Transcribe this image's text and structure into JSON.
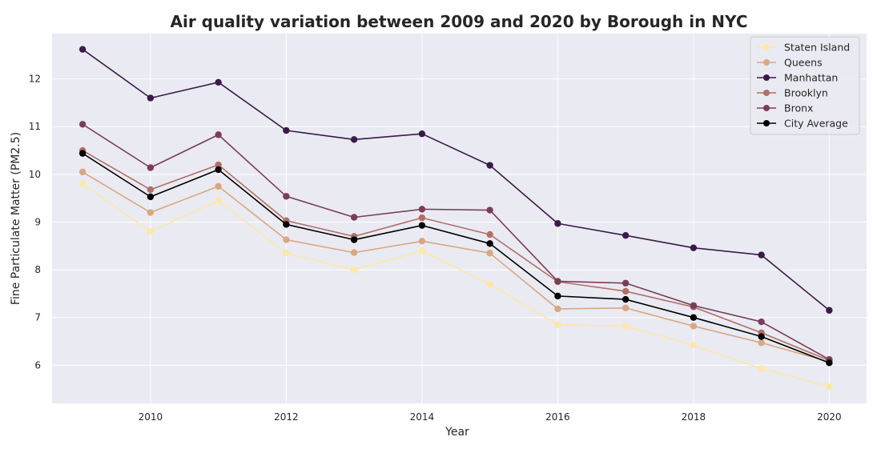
{
  "chart_data": {
    "type": "line",
    "title": "Air quality variation between 2009 and 2020 by Borough in NYC",
    "xlabel": "Year",
    "ylabel": "Fine Particulate Matter (PM2.5)",
    "x": [
      2009,
      2010,
      2011,
      2012,
      2013,
      2014,
      2015,
      2016,
      2017,
      2018,
      2019,
      2020
    ],
    "xticks": [
      2010,
      2012,
      2014,
      2016,
      2018,
      2020
    ],
    "yticks": [
      6,
      7,
      8,
      9,
      10,
      11,
      12
    ],
    "xlim": [
      2008.55,
      2020.55
    ],
    "ylim": [
      5.2,
      12.95
    ],
    "grid": true,
    "legend_position": "top-right",
    "series": [
      {
        "name": "Staten Island",
        "color": "#fde8a8",
        "values": [
          9.8,
          8.8,
          9.45,
          8.35,
          8.0,
          8.4,
          7.7,
          6.85,
          6.82,
          6.42,
          5.93,
          5.55
        ]
      },
      {
        "name": "Queens",
        "color": "#d9a882",
        "values": [
          10.05,
          9.2,
          9.75,
          8.63,
          8.36,
          8.6,
          8.35,
          7.18,
          7.2,
          6.82,
          6.47,
          6.07
        ]
      },
      {
        "name": "Manhattan",
        "color": "#3a1a48",
        "values": [
          12.62,
          11.6,
          11.93,
          10.92,
          10.73,
          10.85,
          10.19,
          8.97,
          8.72,
          8.46,
          8.31,
          7.15
        ]
      },
      {
        "name": "Brooklyn",
        "color": "#b07068",
        "values": [
          10.5,
          9.68,
          10.2,
          9.03,
          8.7,
          9.09,
          8.74,
          7.75,
          7.55,
          7.22,
          6.68,
          6.1
        ]
      },
      {
        "name": "Bronx",
        "color": "#7a3e56",
        "values": [
          11.05,
          10.14,
          10.83,
          9.54,
          9.1,
          9.27,
          9.25,
          7.76,
          7.72,
          7.25,
          6.91,
          6.12
        ]
      },
      {
        "name": "City Average",
        "color": "#000000",
        "values": [
          10.44,
          9.53,
          10.1,
          8.95,
          8.63,
          8.93,
          8.55,
          7.45,
          7.38,
          7.0,
          6.6,
          6.05
        ]
      }
    ]
  }
}
